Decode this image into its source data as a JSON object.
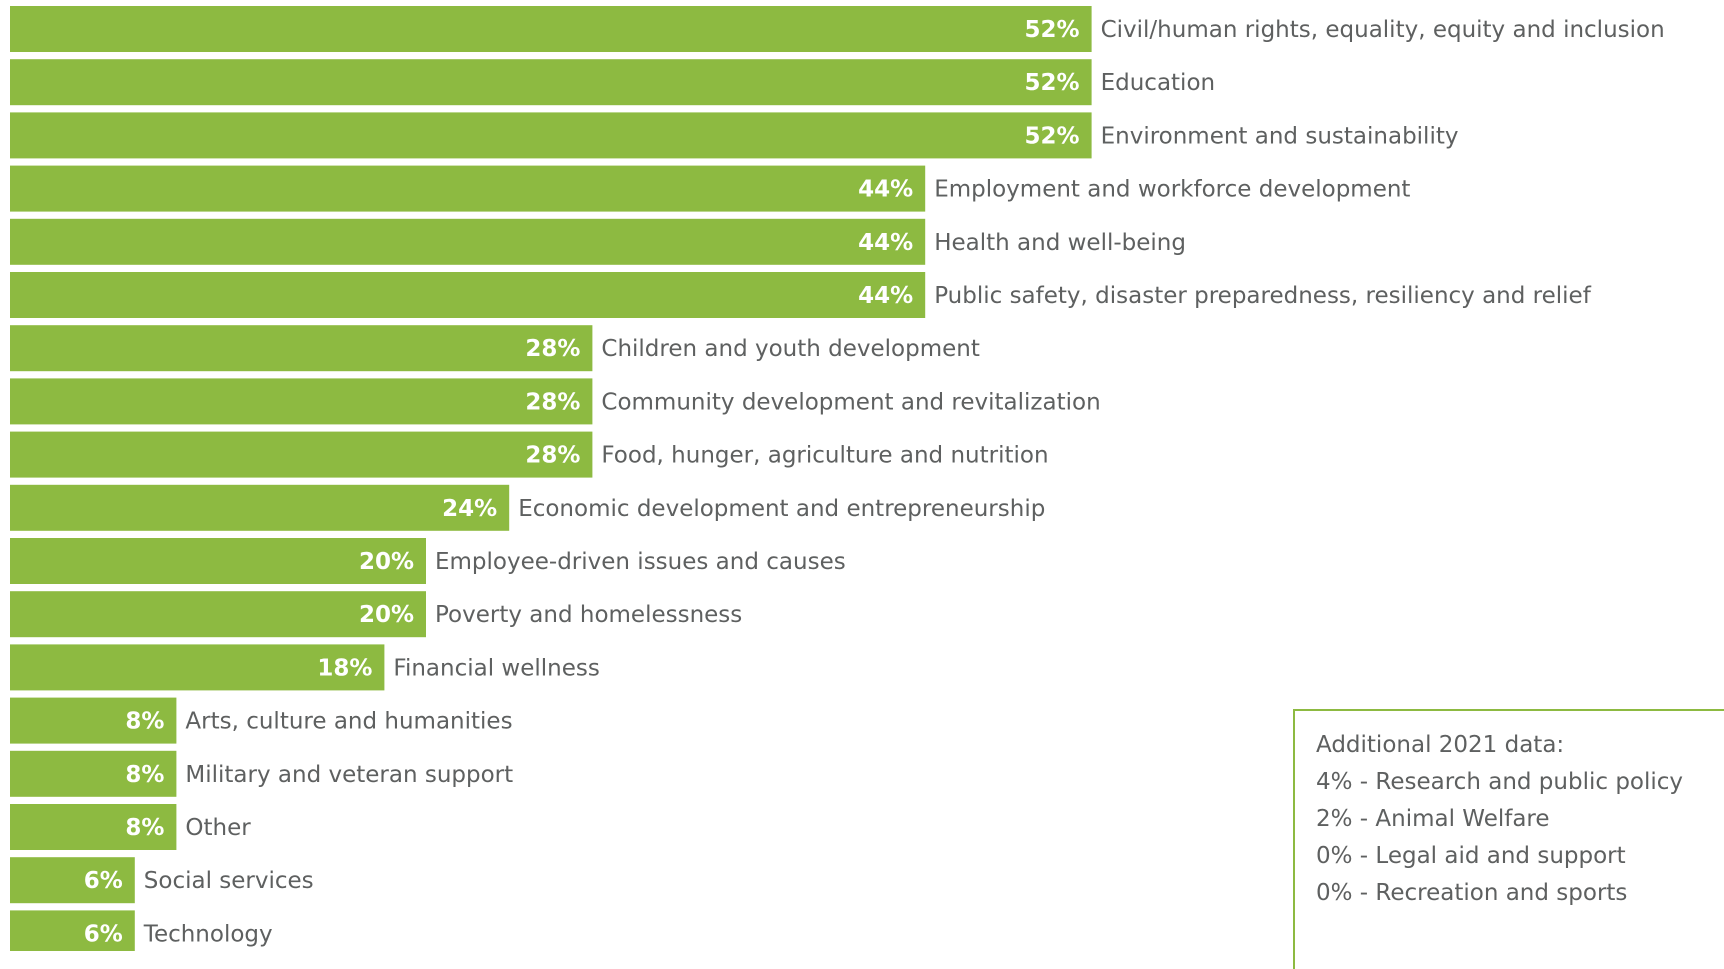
{
  "chart_data": {
    "type": "bar",
    "orientation": "horizontal",
    "bar_color": "#8dba41",
    "label_color": "#5e6060",
    "value_label_color": "#ffffff",
    "categories": [
      "Civil/human rights, equality, equity and inclusion",
      "Education",
      "Environment and sustainability",
      "Employment and workforce development",
      "Health and well-being",
      "Public safety, disaster preparedness, resiliency and relief",
      "Children and youth development",
      "Community development and revitalization",
      "Food, hunger, agriculture and nutrition",
      "Economic development and entrepreneurship",
      "Employee-driven issues and causes",
      "Poverty and homelessness",
      "Financial wellness",
      "Arts, culture and humanities",
      "Military and veteran support",
      "Other",
      "Social services",
      "Technology"
    ],
    "values": [
      52,
      52,
      52,
      44,
      44,
      44,
      28,
      28,
      28,
      24,
      20,
      20,
      18,
      8,
      8,
      8,
      6,
      6
    ],
    "value_labels": [
      "52%",
      "52%",
      "52%",
      "44%",
      "44%",
      "44%",
      "28%",
      "28%",
      "28%",
      "24%",
      "20%",
      "20%",
      "18%",
      "8%",
      "8%",
      "8%",
      "6%",
      "6%"
    ],
    "title": "",
    "xlabel": "",
    "ylabel": "",
    "grid": false,
    "legend": "none"
  },
  "note": {
    "title": "Additional 2021 data:",
    "items": [
      "4% - Research and public policy",
      "2% - Animal Welfare",
      "0% - Legal aid and support",
      "0% - Recreation and sports"
    ]
  }
}
